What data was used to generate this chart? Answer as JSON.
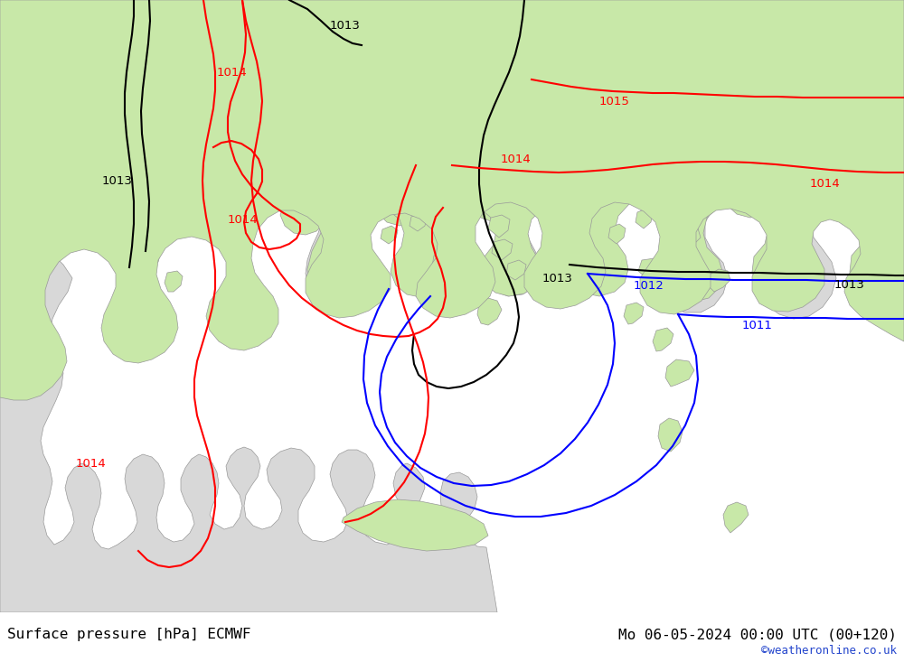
{
  "title_left": "Surface pressure [hPa] ECMWF",
  "title_right": "Mo 06-05-2024 00:00 UTC (00+120)",
  "watermark": "©weatheronline.co.uk",
  "land_color": "#c8e8a8",
  "sea_color": "#d8d8d8",
  "coast_color": "#999999",
  "figsize": [
    10.0,
    7.33
  ],
  "dpi": 100
}
